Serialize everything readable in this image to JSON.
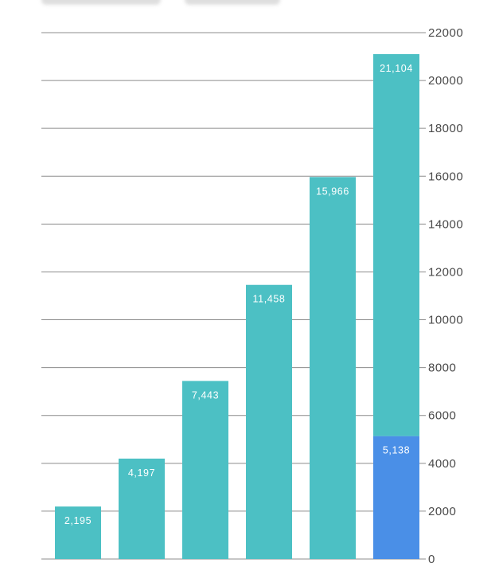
{
  "chart_data": {
    "type": "bar",
    "categories": [
      "",
      "",
      "",
      "",
      "",
      ""
    ],
    "series": [
      {
        "values": [
          2195,
          4197,
          7443,
          11458,
          15966,
          15966
        ]
      },
      {
        "values": [
          0,
          0,
          0,
          0,
          0,
          5138
        ]
      }
    ],
    "data_labels": [
      "2,195",
      "4,197",
      "7,443",
      "11,458",
      "15,966",
      "21,104"
    ],
    "secondary_label": "5,138",
    "y_ticks": [
      "0",
      "2000",
      "4000",
      "6000",
      "8000",
      "10000",
      "12000",
      "14000",
      "16000",
      "18000",
      "20000",
      "22000"
    ],
    "ylim": [
      0,
      22000
    ],
    "y_axis_position": "right",
    "grid": true,
    "stacked": true,
    "colors": {
      "primary": "#4cc0c4",
      "secondary": "#4a8fe7",
      "grid": "#8c8c8c",
      "text": "#4a4a4a"
    }
  }
}
